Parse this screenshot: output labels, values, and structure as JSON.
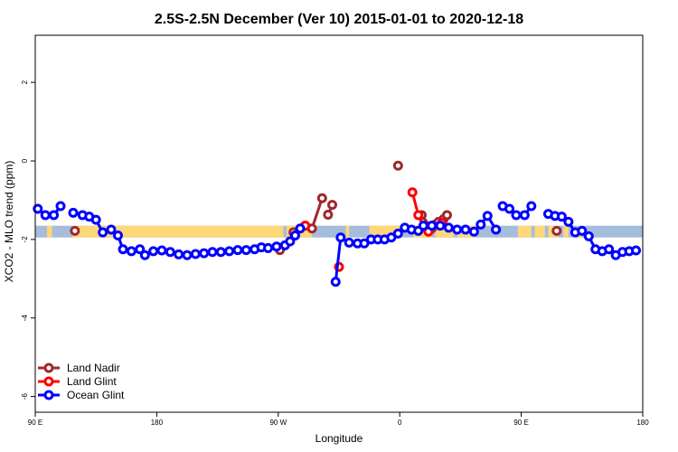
{
  "chart_data": {
    "type": "line",
    "title": "2.5S-2.5N December (Ver 10)   2015-01-01 to 2020-12-18",
    "xlabel": "Longitude",
    "ylabel": "XCO2 - MLO trend (ppm)",
    "xlim": [
      90,
      450
    ],
    "ylim": [
      -6.4,
      3.2
    ],
    "x_ticks": [
      {
        "value": 90,
        "label": "90 E"
      },
      {
        "value": 162,
        "label": "180"
      },
      {
        "value": 234,
        "label": "90 W"
      },
      {
        "value": 306,
        "label": "0"
      },
      {
        "value": 378,
        "label": "90 E"
      },
      {
        "value": 450,
        "label": "180"
      }
    ],
    "y_ticks": [
      {
        "value": 2,
        "label": "2"
      },
      {
        "value": 0,
        "label": "0"
      },
      {
        "value": -2,
        "label": "-2"
      },
      {
        "value": -4,
        "label": "-4"
      },
      {
        "value": -6,
        "label": "-6"
      }
    ],
    "reference_band": {
      "y_min": -1.95,
      "y_max": -1.65,
      "colors": [
        "#a5bcdc",
        "#fdd778",
        "#c8c8c8"
      ]
    },
    "land_band_segments": [
      [
        97,
        100
      ],
      [
        112,
        237
      ],
      [
        239,
        254
      ],
      [
        274,
        276
      ],
      [
        288,
        308
      ],
      [
        314,
        325
      ],
      [
        327,
        338
      ],
      [
        340,
        351
      ],
      [
        376,
        384
      ],
      [
        386,
        392
      ],
      [
        394,
        400
      ],
      [
        403,
        406
      ],
      [
        412,
        414
      ]
    ],
    "legend": {
      "position": "bottom-left"
    },
    "series": [
      {
        "name": "Land Nadir",
        "color": "#a0282c",
        "points": [
          [
            113.5,
            -1.78
          ],
          [
            235,
            -2.27
          ],
          [
            243,
            -1.82
          ],
          [
            250,
            -1.65
          ],
          [
            254,
            -1.72
          ],
          [
            260,
            -0.95
          ],
          [
            263.5,
            -1.37
          ],
          [
            266,
            -1.12
          ],
          [
            305,
            -0.12
          ],
          [
            319,
            -1.38
          ],
          [
            325,
            -1.72
          ],
          [
            327,
            -1.62
          ],
          [
            329,
            -1.55
          ],
          [
            332,
            -1.48
          ],
          [
            334,
            -1.38
          ],
          [
            399,
            -1.78
          ]
        ],
        "segments": [
          [
            0
          ],
          [
            1
          ],
          [
            2,
            3,
            4,
            5
          ],
          [
            6,
            7
          ],
          [
            8
          ],
          [
            9,
            10,
            11,
            12,
            13,
            14
          ],
          [
            15
          ]
        ]
      },
      {
        "name": "Land Glint",
        "color": "#ff0000",
        "points": [
          [
            250,
            -1.65
          ],
          [
            270,
            -2.7
          ],
          [
            313.5,
            -0.8
          ],
          [
            317,
            -1.38
          ],
          [
            320,
            -1.68
          ],
          [
            323,
            -1.8
          ],
          [
            331,
            -1.58
          ]
        ],
        "segments": [
          [
            0
          ],
          [
            1
          ],
          [
            2,
            3,
            4,
            5
          ],
          [
            6
          ]
        ]
      },
      {
        "name": "Ocean Glint",
        "color": "#0000ff",
        "points": [
          [
            91.5,
            -1.22
          ],
          [
            96,
            -1.38
          ],
          [
            101,
            -1.38
          ],
          [
            105,
            -1.15
          ],
          [
            112.5,
            -1.32
          ],
          [
            118,
            -1.38
          ],
          [
            122,
            -1.42
          ],
          [
            126,
            -1.5
          ],
          [
            130,
            -1.82
          ],
          [
            135,
            -1.75
          ],
          [
            139,
            -1.9
          ],
          [
            142,
            -2.25
          ],
          [
            147,
            -2.3
          ],
          [
            152,
            -2.25
          ],
          [
            155,
            -2.4
          ],
          [
            160,
            -2.3
          ],
          [
            165,
            -2.28
          ],
          [
            170,
            -2.32
          ],
          [
            175,
            -2.38
          ],
          [
            180,
            -2.4
          ],
          [
            185,
            -2.37
          ],
          [
            190,
            -2.35
          ],
          [
            195,
            -2.32
          ],
          [
            200,
            -2.32
          ],
          [
            205,
            -2.3
          ],
          [
            210,
            -2.27
          ],
          [
            215,
            -2.27
          ],
          [
            220,
            -2.25
          ],
          [
            224,
            -2.2
          ],
          [
            228,
            -2.22
          ],
          [
            233,
            -2.18
          ],
          [
            238,
            -2.15
          ],
          [
            241,
            -2.05
          ],
          [
            244,
            -1.9
          ],
          [
            247,
            -1.72
          ],
          [
            268,
            -3.08
          ],
          [
            271,
            -1.95
          ],
          [
            276,
            -2.08
          ],
          [
            281,
            -2.1
          ],
          [
            285,
            -2.1
          ],
          [
            289,
            -2.0
          ],
          [
            293,
            -2.0
          ],
          [
            297,
            -2.0
          ],
          [
            301,
            -1.95
          ],
          [
            305,
            -1.85
          ],
          [
            309,
            -1.7
          ],
          [
            313,
            -1.75
          ],
          [
            317,
            -1.78
          ],
          [
            320,
            -1.65
          ],
          [
            325,
            -1.65
          ],
          [
            330,
            -1.65
          ],
          [
            335,
            -1.7
          ],
          [
            340,
            -1.75
          ],
          [
            345,
            -1.75
          ],
          [
            350,
            -1.8
          ],
          [
            354,
            -1.62
          ],
          [
            358,
            -1.4
          ],
          [
            363,
            -1.75
          ],
          [
            367,
            -1.15
          ],
          [
            371,
            -1.22
          ],
          [
            375,
            -1.38
          ],
          [
            380,
            -1.38
          ],
          [
            384,
            -1.15
          ],
          [
            394,
            -1.35
          ],
          [
            398,
            -1.4
          ],
          [
            402,
            -1.42
          ],
          [
            406,
            -1.55
          ],
          [
            410,
            -1.82
          ],
          [
            414,
            -1.78
          ],
          [
            418,
            -1.92
          ],
          [
            422,
            -2.25
          ],
          [
            426,
            -2.3
          ],
          [
            430,
            -2.25
          ],
          [
            434,
            -2.4
          ],
          [
            438,
            -2.32
          ],
          [
            442,
            -2.3
          ],
          [
            446,
            -2.28
          ]
        ],
        "segments": [
          [
            0,
            1,
            2,
            3
          ],
          [
            4,
            5,
            6,
            7,
            8,
            9,
            10,
            11,
            12,
            13,
            14,
            15,
            16,
            17,
            18,
            19,
            20,
            21,
            22,
            23,
            24,
            25,
            26,
            27,
            28,
            29,
            30,
            31,
            32,
            33,
            34
          ],
          [
            35,
            36,
            37,
            38,
            39,
            40,
            41,
            42,
            43,
            44,
            45,
            46,
            47,
            48,
            49,
            50,
            51,
            52,
            53,
            54,
            55,
            56,
            57
          ],
          [
            58,
            59,
            60,
            61,
            62
          ],
          [
            63,
            64,
            65,
            66,
            67,
            68,
            69,
            70,
            71,
            72,
            73,
            74,
            75,
            76
          ]
        ]
      }
    ]
  }
}
